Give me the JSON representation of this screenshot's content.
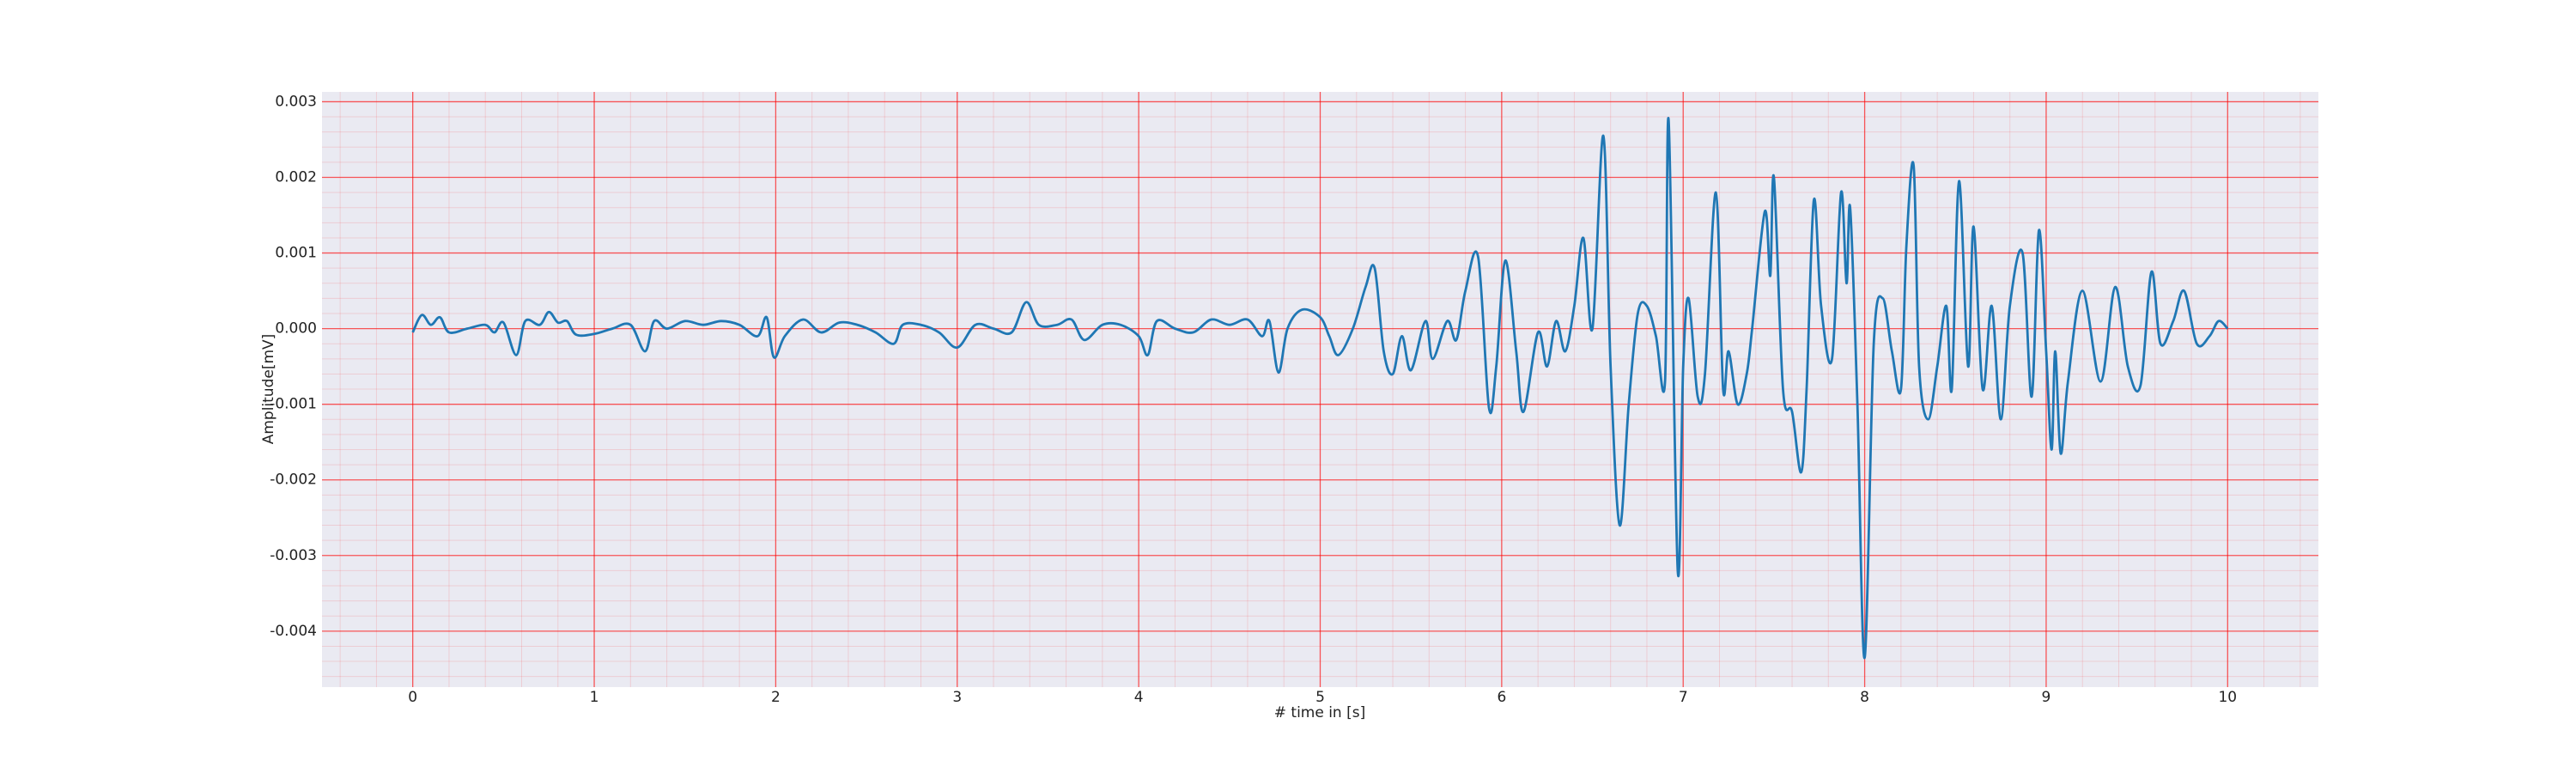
{
  "chart_data": {
    "type": "line",
    "xlabel": "# time in [s]",
    "ylabel": "Amplitude[mV]",
    "x": [
      0,
      0.05,
      0.1,
      0.15,
      0.2,
      0.3,
      0.4,
      0.45,
      0.5,
      0.57,
      0.62,
      0.7,
      0.75,
      0.8,
      0.85,
      0.9,
      1.0,
      1.1,
      1.2,
      1.28,
      1.33,
      1.4,
      1.5,
      1.6,
      1.7,
      1.8,
      1.9,
      1.95,
      1.99,
      2.05,
      2.15,
      2.25,
      2.35,
      2.45,
      2.55,
      2.65,
      2.7,
      2.8,
      2.9,
      3.0,
      3.1,
      3.2,
      3.3,
      3.38,
      3.45,
      3.55,
      3.63,
      3.7,
      3.8,
      3.9,
      4.0,
      4.05,
      4.1,
      4.2,
      4.3,
      4.4,
      4.5,
      4.6,
      4.68,
      4.72,
      4.77,
      4.82,
      4.9,
      5.0,
      5.05,
      5.1,
      5.18,
      5.25,
      5.3,
      5.35,
      5.4,
      5.45,
      5.5,
      5.58,
      5.62,
      5.7,
      5.75,
      5.8,
      5.87,
      5.93,
      5.97,
      6.02,
      6.08,
      6.12,
      6.2,
      6.25,
      6.3,
      6.35,
      6.4,
      6.45,
      6.5,
      6.56,
      6.6,
      6.65,
      6.7,
      6.75,
      6.8,
      6.85,
      6.9,
      6.92,
      6.97,
      7.0,
      7.03,
      7.08,
      7.12,
      7.18,
      7.22,
      7.25,
      7.3,
      7.35,
      7.38,
      7.45,
      7.48,
      7.5,
      7.55,
      7.6,
      7.65,
      7.68,
      7.72,
      7.76,
      7.82,
      7.87,
      7.9,
      7.92,
      7.96,
      8.0,
      8.05,
      8.1,
      8.15,
      8.2,
      8.23,
      8.27,
      8.3,
      8.35,
      8.4,
      8.45,
      8.48,
      8.52,
      8.57,
      8.6,
      8.65,
      8.7,
      8.75,
      8.8,
      8.87,
      8.92,
      8.96,
      9.0,
      9.03,
      9.05,
      9.08,
      9.12,
      9.2,
      9.3,
      9.38,
      9.45,
      9.52,
      9.58,
      9.63,
      9.7,
      9.76,
      9.83,
      9.9,
      9.95,
      10.0
    ],
    "series": [
      {
        "color": "#1f77b4",
        "values": [
          -5e-05,
          0.00018,
          5e-05,
          0.00015,
          -5e-05,
          0,
          5e-05,
          -5e-05,
          8e-05,
          -0.00035,
          0.0001,
          5e-05,
          0.00022,
          8e-05,
          0.0001,
          -8e-05,
          -7e-05,
          0,
          5e-05,
          -0.0003,
          0.0001,
          0,
          0.0001,
          5e-05,
          0.0001,
          5e-05,
          -0.0001,
          0.00015,
          -0.00038,
          -0.0001,
          0.00012,
          -5e-05,
          8e-05,
          5e-05,
          -5e-05,
          -0.0002,
          5e-05,
          5e-05,
          -5e-05,
          -0.00025,
          5e-05,
          0,
          -5e-05,
          0.00035,
          5e-05,
          5e-05,
          0.00012,
          -0.00015,
          5e-05,
          5e-05,
          -0.0001,
          -0.00035,
          0.0001,
          0,
          -5e-05,
          0.00012,
          5e-05,
          0.00012,
          -0.0001,
          0.0001,
          -0.00058,
          0,
          0.00025,
          0.00015,
          -0.0001,
          -0.00035,
          0,
          0.00055,
          0.0008,
          -0.0003,
          -0.0006,
          -0.0001,
          -0.00055,
          0.0001,
          -0.0004,
          0.0001,
          -0.00015,
          0.0005,
          0.00095,
          -0.00105,
          -0.0005,
          0.0009,
          -0.0003,
          -0.0011,
          -5e-05,
          -0.0005,
          0.0001,
          -0.0003,
          0.0003,
          0.0012,
          0,
          0.00255,
          -0.0005,
          -0.0026,
          -0.001,
          0.0002,
          0.0003,
          -0.0001,
          -0.0007,
          0.00275,
          -0.0032,
          -0.0005,
          0.0004,
          -0.0009,
          -0.0006,
          0.0018,
          -0.0008,
          -0.0003,
          -0.001,
          -0.0006,
          0,
          0.00155,
          0.0007,
          0.002,
          -0.0008,
          -0.0011,
          -0.0019,
          -0.0008,
          0.0017,
          0.0003,
          -0.0004,
          0.0018,
          0.0006,
          0.0016,
          -0.001,
          -0.00435,
          -0.0002,
          0.0004,
          -0.0003,
          -0.0008,
          0.0011,
          0.00215,
          -0.0005,
          -0.0012,
          -0.0005,
          0.0003,
          -0.0008,
          0.00195,
          -0.0005,
          0.00135,
          -0.0008,
          0.0003,
          -0.0012,
          0.0003,
          0.001,
          -0.0009,
          0.0013,
          -0.0003,
          -0.0016,
          -0.0003,
          -0.00165,
          -0.0007,
          0.0005,
          -0.0007,
          0.00055,
          -0.0005,
          -0.00075,
          0.00075,
          -0.0002,
          0.0001,
          0.0005,
          -0.0002,
          -0.0001,
          0.0001,
          0
        ]
      }
    ],
    "xlim": [
      -0.5,
      10.5
    ],
    "xticks": [
      0,
      1,
      2,
      3,
      4,
      5,
      6,
      7,
      8,
      9,
      10
    ],
    "ylim": [
      -0.00474,
      0.00313
    ],
    "yticks": [
      -0.004,
      -0.003,
      -0.002,
      -0.001,
      {
        "value": 0,
        "label": "0.000"
      },
      0.001,
      0.002,
      0.003
    ],
    "grid": true,
    "minor_grid": true,
    "grid_color": "#ff0000",
    "background": "#eaeaf2"
  }
}
